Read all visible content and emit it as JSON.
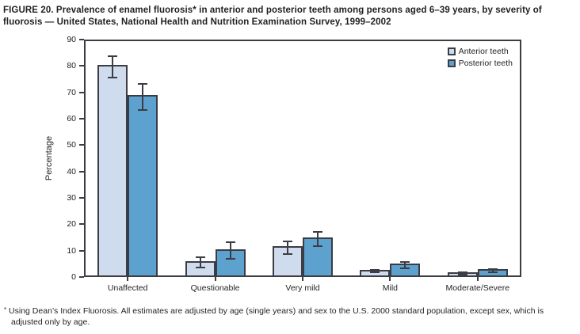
{
  "title": "FIGURE 20. Prevalence of enamel fluorosis* in anterior and posterior teeth among persons aged 6–39 years, by severity of fluorosis — United States, National Health and Nutrition Examination Survey, 1999–2002",
  "footnote": {
    "marker": "*",
    "text": "Using Dean’s Index Fluorosis. All estimates are adjusted by age (single years) and sex to the U.S. 2000 standard population, except sex, which is adjusted only by age."
  },
  "colors": {
    "anterior_fill": "#cfdcee",
    "posterior_fill": "#5da2ce",
    "axis_and_border": "#3c3c44",
    "text": "#231f20",
    "background": "#ffffff"
  },
  "chart_data": {
    "type": "bar",
    "title": "",
    "categories": [
      "Unaffected",
      "Questionable",
      "Very mild",
      "Mild",
      "Moderate/Severe"
    ],
    "series": [
      {
        "name": "Anterior teeth",
        "color": "#cfdcee",
        "values": [
          79.7,
          5.5,
          11.0,
          2.2,
          1.2
        ],
        "ci_low": [
          75.7,
          3.5,
          8.6,
          1.7,
          0.8
        ],
        "ci_high": [
          83.7,
          7.5,
          13.5,
          2.7,
          1.7
        ]
      },
      {
        "name": "Posterior teeth",
        "color": "#5da2ce",
        "values": [
          68.3,
          10.0,
          14.3,
          4.5,
          2.4
        ],
        "ci_low": [
          63.2,
          7.0,
          11.6,
          3.4,
          1.9
        ],
        "ci_high": [
          73.3,
          13.2,
          17.2,
          5.6,
          3.0
        ]
      }
    ],
    "xlabel": "",
    "ylabel": "Percentage",
    "ylim": [
      0,
      90
    ],
    "ytick_step": 10,
    "grid": false,
    "error_bars": true,
    "legend_position": "top-right-inside"
  }
}
